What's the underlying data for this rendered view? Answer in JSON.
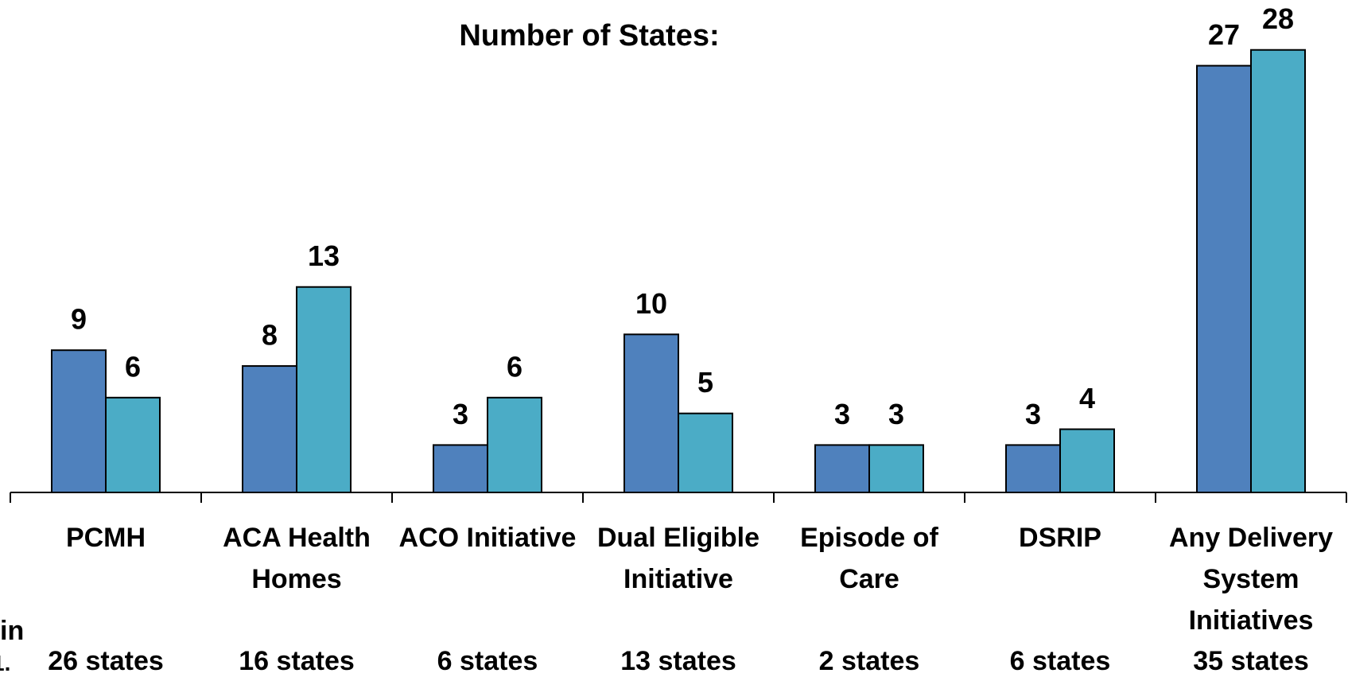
{
  "chart_data": {
    "type": "bar",
    "title": "Number of States:",
    "categories": [
      "PCMH",
      "ACA Health Homes",
      "ACO Initiative",
      "Dual Eligible Initiative",
      "Episode of Care",
      "DSRIP",
      "Any Delivery System Initiatives"
    ],
    "category_totals": [
      "26 states",
      "16 states",
      "6 states",
      "13 states",
      "2 states",
      "6 states",
      "35 states"
    ],
    "series": [
      {
        "color": "#4f81bd",
        "values": [
          9,
          8,
          3,
          10,
          3,
          3,
          27
        ]
      },
      {
        "color": "#4bacc6",
        "values": [
          6,
          13,
          6,
          5,
          3,
          4,
          28
        ]
      }
    ],
    "ylim": [
      0,
      30
    ],
    "cut_text": [
      "in",
      "1."
    ]
  }
}
